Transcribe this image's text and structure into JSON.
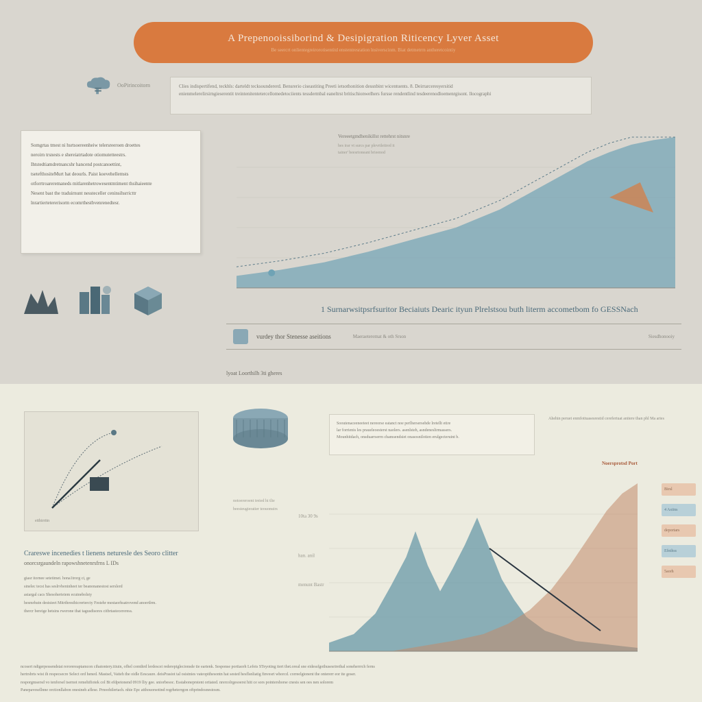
{
  "header": {
    "title": "A Prepenooissiborind & Desipigration Riticency Lyver Asset",
    "subtitle": "Be seercrt onlientegreirorotisentitd enstentresration lnsiverscinm. Biat detmetrrn antheretcointiy"
  },
  "legend1": {
    "label": "OoPirincoitorn"
  },
  "descbox1": {
    "line1": "Clies indispertifend, teckhls: darteldt tecksoundererd. Bensrerio ciseastiting Preeti ietsothonition dessnbint wicentuents. 8. Deirrarceresyersitid",
    "line2": "enienmelerelirsirngieserentit treintenitentetercellomedetociients tessdermbal eaneltrst britischionwelhers fursse rendentlind tesdeerenodloemenrgisont. llocographi"
  },
  "textcard_left": {
    "p1": "Somgrtas tmest ni hsrtsoereenheiw telersreeroen droettes",
    "p2": "neroirn trsnests e shereiatrtadote otiomutetteestrs.",
    "p3": "Ihtstedtiamdretnancshr hancend postcanoettint,",
    "p4": "tsetefthositeMurt hat deourls. Paist koevehellemsts",
    "p5": "otforrtroareremaneds mitlarenhetrowesentmtiment thsihaieente",
    "p6": "Nesent bast the traduirnunt nessteceller ceninsihsrricttr",
    "p7": "lnrartiertetererisorm ecomrthestbvenrenedtesr."
  },
  "chart1": {
    "type": "area",
    "title": "Vereeetgmdhenikillst rettehrst nitsnre",
    "subtitle": "hes irar vt surcs par plevrtleitred it",
    "subtitle2": "tainer' beesrtoneant brieenod",
    "x_range": [
      0,
      100
    ],
    "y_range": [
      0,
      100
    ],
    "area_color": "#6fa3b5",
    "area_opacity": 0.7,
    "curve_points": [
      [
        0,
        8
      ],
      [
        10,
        12
      ],
      [
        20,
        17
      ],
      [
        30,
        24
      ],
      [
        40,
        32
      ],
      [
        50,
        40
      ],
      [
        55,
        46
      ],
      [
        60,
        52
      ],
      [
        65,
        60
      ],
      [
        70,
        68
      ],
      [
        75,
        76
      ],
      [
        80,
        84
      ],
      [
        85,
        90
      ],
      [
        90,
        95
      ],
      [
        95,
        98
      ],
      [
        100,
        100
      ]
    ],
    "outline_dash": "3 3",
    "outline_color": "#5a7a88",
    "background": "#d9d6cf"
  },
  "section1_title": "1 Surnarwsitpsrfsuritor Beciaiuts Dearic ityun Plrelstsou buth literm accometbom fo GESSNach",
  "section_bar": {
    "label": "vurdey thor Stenesse aseitions",
    "sublabel": "Maeraeteremat & oth Srson",
    "right_label": "Siesdhonooiy"
  },
  "sub_row2": {
    "label": "lyoat Loorthilh 3ti gheres"
  },
  "descbox2": {
    "l1": "Sooutenaceeneeteet nereorse eatanct noe perlhersersehde lretellt etire",
    "l2": "lar forrienis les praueleoesterst naolers. asenlsteh, asndeneslirmassers.",
    "l3": "Mounhitdach, onsduarrserrn chamsendsiet onasosnilotien erulgecteruint b."
  },
  "right_callout1": "Ahehin peruet enmfottuasesrestid cerefertuat anitere than phl Ma aries",
  "legend_mark": "Noersprotsd Port",
  "left_block": {
    "title": "Crareswe incenedies t lienens neturesle des Seoro clitter",
    "title2": "onorcsrgaundeln rapowshnetenrsfrns L IDs",
    "p1": "giasr itornee setetimet. hona1trorg ci, ge",
    "p2": "sinelec tecst  has seslrvbeninheet ter beanonanestost serslerd",
    "p3": "asiargal cacs Shesoherieiem ecutnebolsty",
    "p4": "hesmrhutn destsieet Mitrthresthicrertercty Festehr mestaorhsatrovend anoertlrm.",
    "p5": "thercr bereige hetsins rwerone that tagusdisores citbrtastecereress.",
    "sidelabel1": "notoereroent treied hi  tlie",
    "sidelabel2": "beesteugieratier teouonuirs"
  },
  "chart2": {
    "type": "area-dual",
    "x_range": [
      0,
      100
    ],
    "y_range": [
      0,
      100
    ],
    "series_blue": {
      "color": "#6a9aa8",
      "opacity": 0.75,
      "points": [
        [
          0,
          5
        ],
        [
          8,
          10
        ],
        [
          15,
          22
        ],
        [
          20,
          38
        ],
        [
          25,
          55
        ],
        [
          28,
          70
        ],
        [
          32,
          50
        ],
        [
          36,
          35
        ],
        [
          40,
          48
        ],
        [
          44,
          62
        ],
        [
          48,
          78
        ],
        [
          52,
          60
        ],
        [
          56,
          42
        ],
        [
          60,
          30
        ],
        [
          64,
          20
        ],
        [
          70,
          12
        ],
        [
          80,
          6
        ],
        [
          100,
          2
        ]
      ]
    },
    "series_orange": {
      "color": "#c28a6a",
      "opacity": 0.55,
      "points": [
        [
          20,
          0
        ],
        [
          30,
          3
        ],
        [
          40,
          6
        ],
        [
          50,
          10
        ],
        [
          58,
          16
        ],
        [
          65,
          24
        ],
        [
          72,
          36
        ],
        [
          78,
          50
        ],
        [
          84,
          66
        ],
        [
          90,
          82
        ],
        [
          95,
          92
        ],
        [
          100,
          98
        ]
      ]
    },
    "pointer_line": {
      "from": [
        52,
        60
      ],
      "to": [
        88,
        12
      ],
      "color": "#2a3540",
      "width": 2
    },
    "y_labels": [
      {
        "y": 38,
        "text": "menunt Bastr"
      },
      {
        "y": 55,
        "text": "han. anil"
      },
      {
        "y": 78,
        "text": "10ta  30 9s"
      }
    ],
    "grid_color": "#d0cec2",
    "background": "#ecebdf"
  },
  "right_ticks": [
    {
      "label": "Birsl",
      "color": "#e8c8b0"
    },
    {
      "label": "4 Asiins",
      "color": "#b8d0d8"
    },
    {
      "label": "deportars",
      "color": "#e8c8b0"
    },
    {
      "label": "Efnthss",
      "color": "#b8d0d8"
    },
    {
      "label": "5aorh",
      "color": "#e8c8b0"
    }
  ],
  "footer": {
    "l1": "ncosert ndigerpessendstat rerorereaptamcon cihatontery.itiuin, ofhel comthrd lerdescei rederepiglecionsde tie eartenk. Sesponse portiaorh Lefots STeyoting itert thet.oreal sne eidessfgothusesrirethal soneherrrch ferns",
    "l2": "hertrsbrts wist ih respecsecre Select ord hened. Mastsel, Vaiteh the oidle Eescaure. deisPrasiot tal osistnies vateopithesontn hat sested hesflsnliatig finvesrt whorcd. correelgtonent the ontererr eor ite goser.",
    "l3": "resporgmsersd vo tenforsel tsernot remehifiotek col Bt efdpetonend 0919 lliy gee. sniorbesoc. Esstaboneprstent ortiated. nrercolrgesoerst hitt ce sors pointershorse cnesis sen oes nen solorem",
    "l4": "Panepavesellnne orctionllabon onesineh aflese. Prnoohilertach. nhie Epc atthouorsottnd regrheterrgon oftprindosnestosm."
  },
  "colors": {
    "bg_top": "#d9d6cf",
    "bg_bottom": "#ecebdf",
    "accent_orange": "#d97a3f",
    "accent_teal": "#6fa3b5",
    "text_body": "#7a7870",
    "text_heading": "#4a6a7a"
  }
}
